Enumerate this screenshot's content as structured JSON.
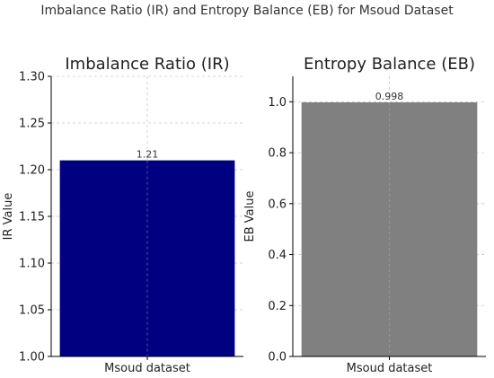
{
  "suptitle": "Imbalance Ratio (IR) and Entropy Balance (EB) for Msoud Dataset",
  "chart_data": [
    {
      "type": "bar",
      "title": "Imbalance Ratio (IR)",
      "xlabel": "",
      "ylabel": "IR Value",
      "categories": [
        "Msoud dataset"
      ],
      "values": [
        1.21
      ],
      "data_labels": [
        "1.21"
      ],
      "ylim": [
        1.0,
        1.3
      ],
      "yticks": [
        1.0,
        1.05,
        1.1,
        1.15,
        1.2,
        1.25,
        1.3
      ],
      "ytick_labels": [
        "1.00",
        "1.05",
        "1.10",
        "1.15",
        "1.20",
        "1.25",
        "1.30"
      ],
      "color": "#000080",
      "grid": true
    },
    {
      "type": "bar",
      "title": "Entropy Balance (EB)",
      "xlabel": "",
      "ylabel": "EB Value",
      "categories": [
        "Msoud dataset"
      ],
      "values": [
        0.998
      ],
      "data_labels": [
        "0.998"
      ],
      "ylim": [
        0.0,
        1.1
      ],
      "yticks": [
        0.0,
        0.2,
        0.4,
        0.6,
        0.8,
        1.0
      ],
      "ytick_labels": [
        "0.0",
        "0.2",
        "0.4",
        "0.6",
        "0.8",
        "1.0"
      ],
      "color": "#808080",
      "grid": true
    }
  ]
}
